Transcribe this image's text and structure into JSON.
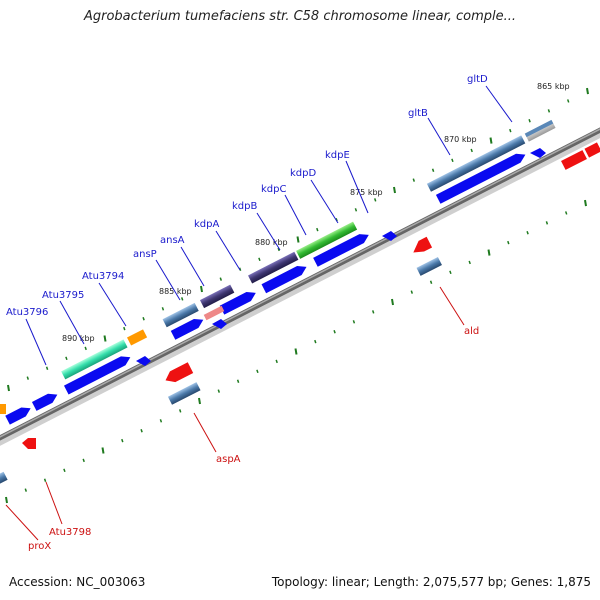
{
  "title": "Agrobacterium tumefaciens str. C58 chromosome linear, comple...",
  "footer": {
    "accession": "Accession: NC_003063",
    "topology": "Topology: linear; Length: 2,075,577 bp; Genes: 1,875"
  },
  "colors": {
    "forward_label": "#1a1acc",
    "reverse_label": "#cc1111",
    "backbone": "#777777",
    "tick": "#1f7a1f",
    "gene_blue": "#0a0af0",
    "gene_red": "#ee1111",
    "gene_steel": "#4a78a8",
    "gene_purple": "#3e3670",
    "gene_green": "#33bb33",
    "gene_teal": "#33ddaa",
    "gene_orange": "#ff9900"
  },
  "scale_labels": [
    "865 kbp",
    "870 kbp",
    "875 kbp",
    "880 kbp",
    "885 kbp",
    "890 kbp"
  ],
  "forward_gene_labels": [
    "gltD",
    "gltB",
    "kdpE",
    "kdpD",
    "kdpC",
    "kdpB",
    "kdpA",
    "ansA",
    "ansP",
    "Atu3794",
    "Atu3795",
    "Atu3796"
  ],
  "reverse_gene_labels": [
    "ald",
    "aspA",
    "Atu3798",
    "proX"
  ]
}
